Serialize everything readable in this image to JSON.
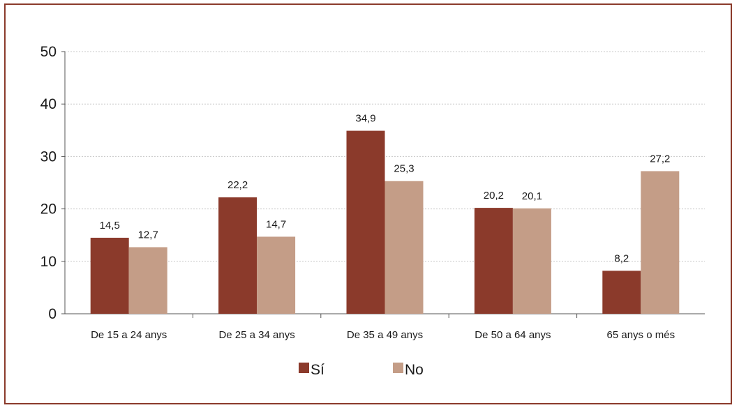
{
  "chart_data": {
    "type": "bar",
    "categories": [
      "De 15 a 24 anys",
      "De 25 a 34 anys",
      "De 35 a 49 anys",
      "De 50 a 64 anys",
      "65 anys o més"
    ],
    "series": [
      {
        "name": "Sí",
        "values": [
          14.5,
          22.2,
          34.9,
          20.2,
          8.2
        ],
        "labels": [
          "14,5",
          "22,2",
          "34,9",
          "20,2",
          "8,2"
        ],
        "color": "#8b3a2b"
      },
      {
        "name": "No",
        "values": [
          12.7,
          14.7,
          25.3,
          20.1,
          27.2
        ],
        "labels": [
          "12,7",
          "14,7",
          "25,3",
          "20,1",
          "27,2"
        ],
        "color": "#c49d87"
      }
    ],
    "yticks": [
      0,
      10,
      20,
      30,
      40,
      50
    ],
    "ylim": [
      0,
      50
    ],
    "grid": true,
    "legend_position": "bottom",
    "frame_color": "#8b3a2b"
  }
}
